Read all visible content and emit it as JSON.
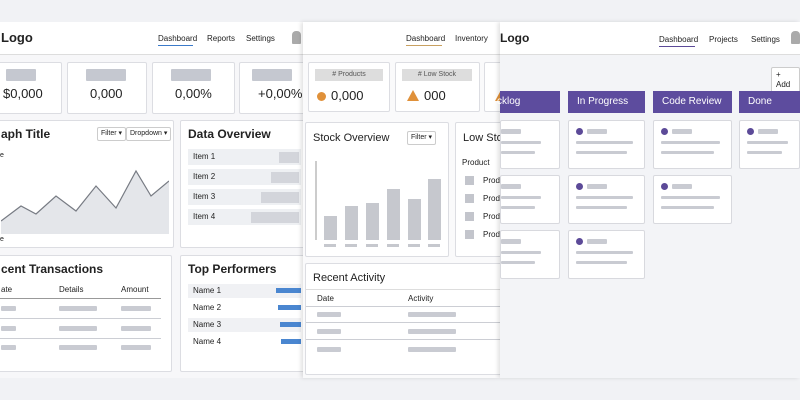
{
  "panels": [
    {
      "logo": "Logo",
      "nav": [
        "Dashboard",
        "Reports",
        "Settings"
      ],
      "kpis": [
        "$0,000",
        "0,000",
        "0,00%",
        "+0,00%"
      ],
      "graph": {
        "title": "aph Title",
        "filter": "Filter",
        "dropdown": "Dropdown",
        "axis_top": "e",
        "axis_bottom": "e"
      },
      "overview": {
        "title": "Data Overview",
        "items": [
          "Item 1",
          "Item 2",
          "Item 3",
          "Item 4"
        ]
      },
      "transactions": {
        "title": "cent Transactions",
        "columns": [
          "ate",
          "Details",
          "Amount"
        ]
      },
      "performers": {
        "title": "Top Performers",
        "names": [
          "Name 1",
          "Name 2",
          "Name 3",
          "Name 4"
        ]
      }
    },
    {
      "nav": [
        "Dashboard",
        "Inventory"
      ],
      "kpis": [
        {
          "label": "# Products",
          "value": "0,000"
        },
        {
          "label": "# Low Stock",
          "value": "000"
        }
      ],
      "stock": {
        "title": "Stock Overview",
        "filter": "Filter"
      },
      "low_stock": {
        "title": "Low Stoc",
        "header": "Product",
        "rows": [
          "Produ",
          "Produ",
          "Produ",
          "Produ"
        ]
      },
      "activity": {
        "title": "Recent Activity",
        "columns": [
          "Date",
          "Activity"
        ]
      }
    },
    {
      "logo": "Logo",
      "nav": [
        "Dashboard",
        "Projects",
        "Settings"
      ],
      "add": "Add",
      "columns": [
        "cklog",
        "In Progress",
        "Code Review",
        "Done"
      ]
    }
  ]
}
